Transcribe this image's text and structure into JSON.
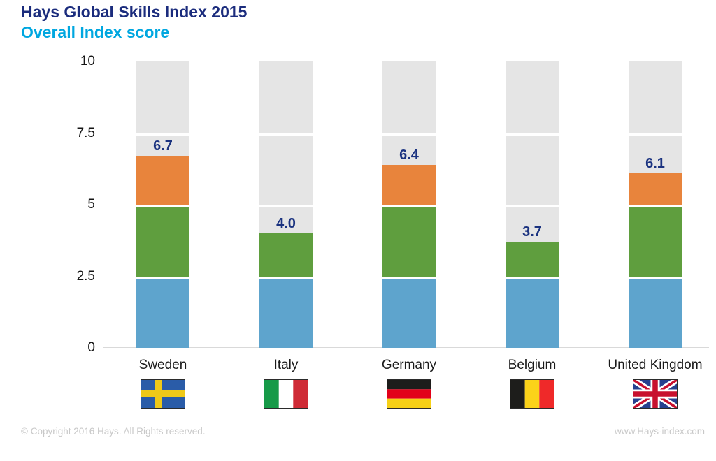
{
  "header": {
    "title": "Hays Global Skills Index 2015",
    "subtitle": "Overall Index score"
  },
  "footer": {
    "copyright": "© Copyright 2016 Hays. All Rights reserved.",
    "website": "www.Hays-index.com"
  },
  "chart_data": {
    "type": "bar",
    "variant": "segmented-stacked-column with gray track to max",
    "title": "Hays Global Skills Index 2015",
    "subtitle": "Overall Index score",
    "categories": [
      "Sweden",
      "Italy",
      "Germany",
      "Belgium",
      "United Kingdom"
    ],
    "values": [
      6.7,
      4.0,
      6.4,
      3.7,
      6.1
    ],
    "value_labels": [
      "6.7",
      "4.0",
      "6.4",
      "3.7",
      "6.1"
    ],
    "flags": [
      "sweden",
      "italy",
      "germany",
      "belgium",
      "united-kingdom"
    ],
    "ylim": [
      0,
      10
    ],
    "yticks": [
      0,
      2.5,
      5,
      7.5,
      10
    ],
    "ytick_labels": [
      "0",
      "2.5",
      "5",
      "7.5",
      "10"
    ],
    "xlabel": "",
    "ylabel": "",
    "grid": false,
    "legend": "none",
    "bands": [
      {
        "from": 0,
        "to": 2.5,
        "color": "#5ea4cd",
        "name": "segment-0-2.5-blue"
      },
      {
        "from": 2.5,
        "to": 5,
        "color": "#5f9e3e",
        "name": "segment-2.5-5-green"
      },
      {
        "from": 5,
        "to": 7.5,
        "color": "#e8843c",
        "name": "segment-5-7.5-orange"
      },
      {
        "from": 7.5,
        "to": 10,
        "color": "#e5e5e5",
        "name": "segment-7.5-10-track"
      }
    ],
    "track_color": "#e5e5e5",
    "axis_line_color": "#d9d9d9",
    "value_label_color": "#1b3380",
    "tick_label_color": "#141414"
  },
  "colors": {
    "title_navy": "#1b2c7d",
    "subtitle_cyan": "#00a7e0",
    "bar_blue": "#5ea4cd",
    "bar_green": "#5f9e3e",
    "bar_orange": "#e8843c",
    "bar_track_gray": "#e5e5e5",
    "footer_gray": "#c8c8c8"
  }
}
